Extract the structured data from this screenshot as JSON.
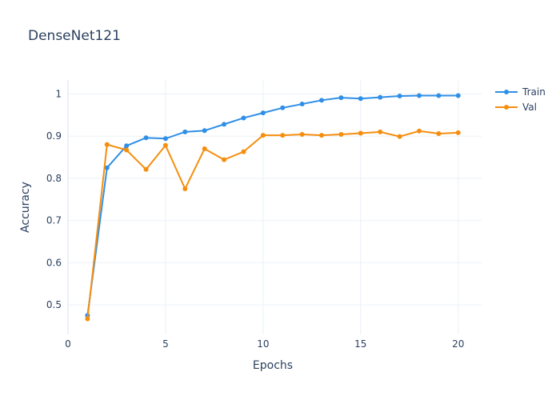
{
  "chart_data": {
    "type": "line",
    "title": "DenseNet121",
    "xlabel": "Epochs",
    "ylabel": "Accuracy",
    "xlim": [
      0,
      21.2
    ],
    "ylim": [
      0.43,
      1.033
    ],
    "x_ticks": [
      0,
      5,
      10,
      15,
      20
    ],
    "y_ticks": [
      0.5,
      0.6,
      0.7,
      0.8,
      0.9,
      1
    ],
    "grid": true,
    "legend_position": "top-right",
    "x": [
      1,
      2,
      3,
      4,
      5,
      6,
      7,
      8,
      9,
      10,
      11,
      12,
      13,
      14,
      15,
      16,
      17,
      18,
      19,
      20
    ],
    "series": [
      {
        "name": "Train",
        "color": "#2f8fe6",
        "values": [
          0.475,
          0.825,
          0.877,
          0.896,
          0.894,
          0.91,
          0.913,
          0.928,
          0.943,
          0.955,
          0.967,
          0.976,
          0.985,
          0.991,
          0.989,
          0.992,
          0.995,
          0.996,
          0.996,
          0.996
        ]
      },
      {
        "name": "Val",
        "color": "#f58e0e",
        "values": [
          0.467,
          0.88,
          0.867,
          0.821,
          0.878,
          0.775,
          0.87,
          0.844,
          0.863,
          0.902,
          0.902,
          0.904,
          0.902,
          0.904,
          0.907,
          0.91,
          0.899,
          0.912,
          0.906,
          0.908
        ]
      }
    ]
  }
}
